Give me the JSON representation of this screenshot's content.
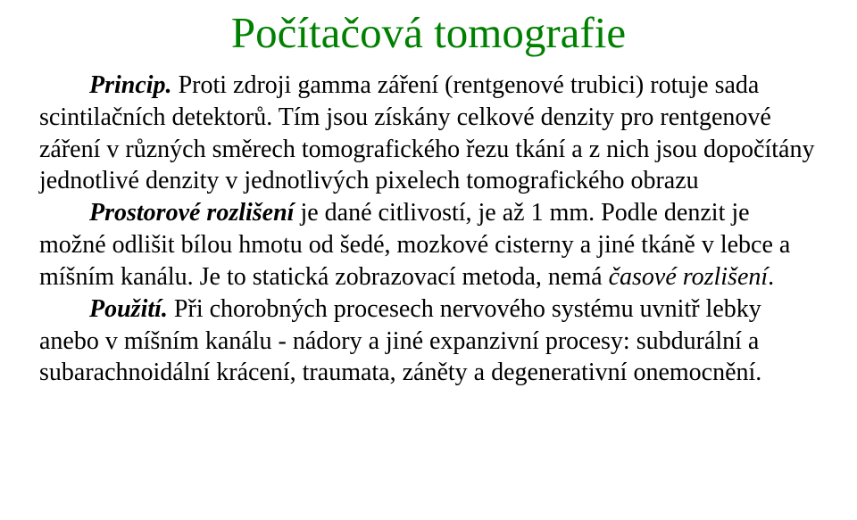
{
  "colors": {
    "title": "#008000",
    "body": "#000000",
    "background": "#ffffff"
  },
  "title": "Počítačová tomografie",
  "p1": {
    "lead": "Princip.",
    "t1": " Proti zdroji gamma záření (rentgenové trubici) rotuje sada scintilačních detektorů. Tím jsou získány celkové denzity pro rentgenové záření v různých směrech tomografického řezu tkání a z nich jsou dopočítány jednotlivé denzity v jednotlivých pixelech tomografického obrazu"
  },
  "p2": {
    "lead": "Prostorové rozlišení",
    "t1": " je dané citlivostí, je až 1 mm. Podle denzit je možné odlišit bílou hmotu od šedé, mozkové cisterny a jiné tkáně v lebce a míšním kanálu. Je to statická zobrazovací metoda, nemá ",
    "em": "časové rozlišení",
    "t2": "."
  },
  "p3": {
    "lead": "Použití.",
    "t1": " Při chorobných procesech nervového systému uvnitř lebky anebo v míšním kanálu - nádory a jiné expanzivní procesy: subdurální a subarachnoidální krácení, traumata, záněty a degenerativní onemocnění."
  }
}
